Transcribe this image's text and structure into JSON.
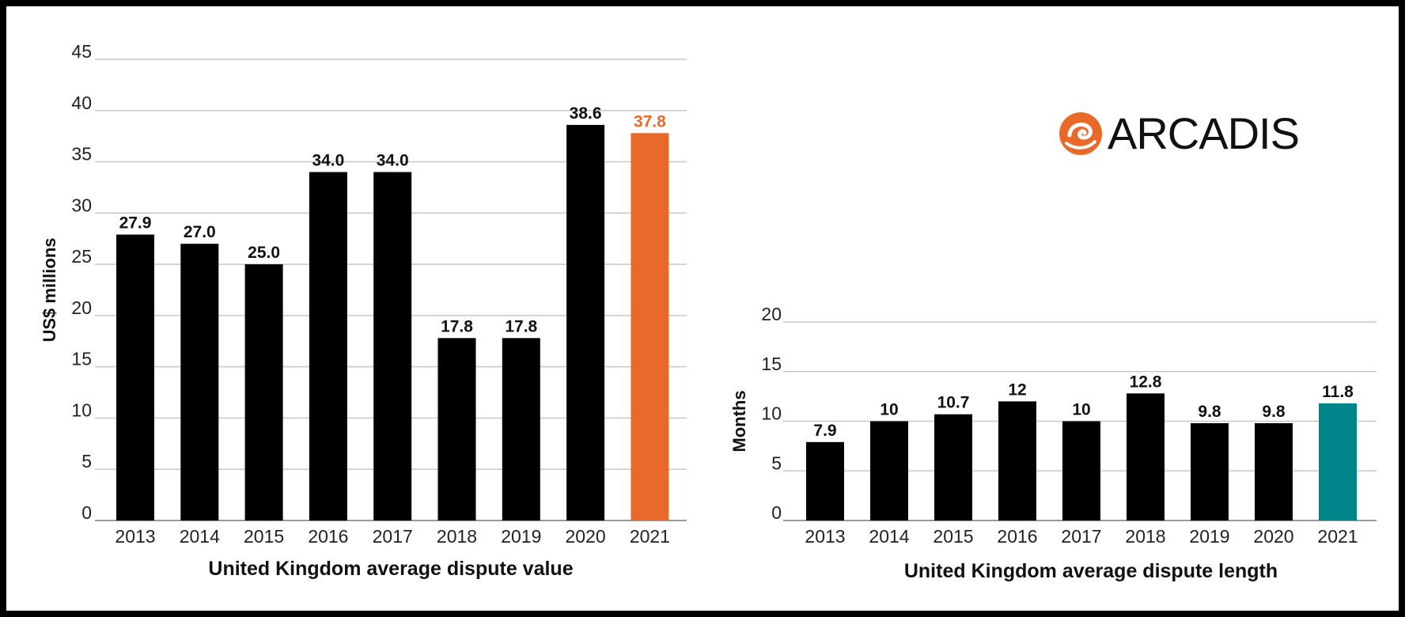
{
  "logo": {
    "text": "ARCADIS",
    "color": "#e8692a"
  },
  "chart_data": [
    {
      "type": "bar",
      "title": "United Kingdom average dispute value",
      "ylabel": "US$ millions",
      "xlabel": "",
      "categories": [
        "2013",
        "2014",
        "2015",
        "2016",
        "2017",
        "2018",
        "2019",
        "2020",
        "2021"
      ],
      "values": [
        27.9,
        27.0,
        25.0,
        34.0,
        34.0,
        17.8,
        17.8,
        38.6,
        37.8
      ],
      "value_labels": [
        "27.9",
        "27.0",
        "25.0",
        "34.0",
        "34.0",
        "17.8",
        "17.8",
        "38.6",
        "37.8"
      ],
      "ylim": [
        0,
        45
      ],
      "yticks": [
        0,
        5,
        10,
        15,
        20,
        25,
        30,
        35,
        40,
        45
      ],
      "grid": true,
      "bar_color": "#000000",
      "highlight_color": "#e8692a",
      "highlight_index": 8
    },
    {
      "type": "bar",
      "title": "United Kingdom average dispute length",
      "ylabel": "Months",
      "xlabel": "",
      "categories": [
        "2013",
        "2014",
        "2015",
        "2016",
        "2017",
        "2018",
        "2019",
        "2020",
        "2021"
      ],
      "values": [
        7.9,
        10,
        10.7,
        12,
        10,
        12.8,
        9.8,
        9.8,
        11.8
      ],
      "value_labels": [
        "7.9",
        "10",
        "10.7",
        "12",
        "10",
        "12.8",
        "9.8",
        "9.8",
        "11.8"
      ],
      "ylim": [
        0,
        20
      ],
      "yticks": [
        0,
        5,
        10,
        15,
        20
      ],
      "grid": true,
      "bar_color": "#000000",
      "highlight_color": "#00868a",
      "highlight_index": 8
    }
  ]
}
